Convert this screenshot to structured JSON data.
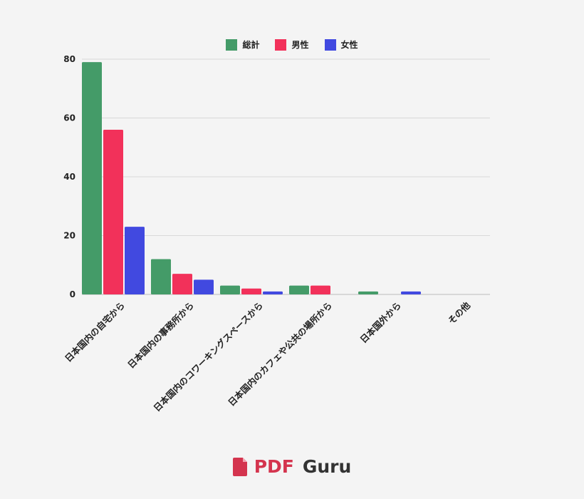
{
  "chart_data": {
    "type": "bar",
    "categories": [
      "日本国内の自宅から",
      "日本国内の事務所から",
      "日本国内のコワーキングスペースから",
      "日本国内のカフェや公共の場所から",
      "日本国外から",
      "その他"
    ],
    "series": [
      {
        "name": "総計",
        "color": "#449b68",
        "values": [
          79,
          12,
          3,
          3,
          1,
          0
        ]
      },
      {
        "name": "男性",
        "color": "#f2315a",
        "values": [
          56,
          7,
          2,
          3,
          0,
          0
        ]
      },
      {
        "name": "女性",
        "color": "#4149e0",
        "values": [
          23,
          5,
          1,
          0,
          1,
          0
        ]
      }
    ],
    "ylim": [
      0,
      80
    ],
    "yticks": [
      0,
      20,
      40,
      60,
      80
    ],
    "grid": true,
    "legend_position": "top-center"
  },
  "branding": {
    "pdf": "PDF",
    "guru": "Guru",
    "icon": "pdf-file-icon",
    "accent": "#d4344e"
  }
}
